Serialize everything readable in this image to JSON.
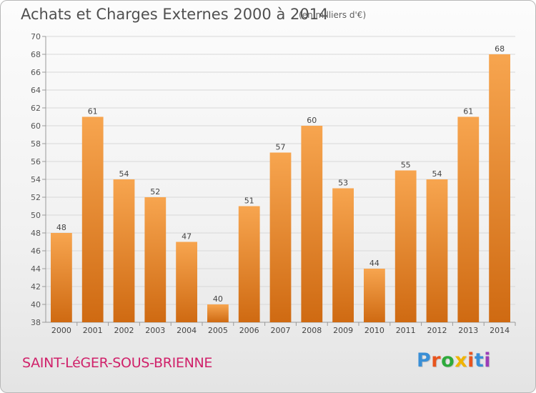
{
  "header": {
    "title": "Achats et Charges Externes 2000 à 2014",
    "subtitle": "(en milliers d'€)"
  },
  "footer": {
    "commune": "SAINT-LéGER-SOUS-BRIENNE",
    "logo": "Proxiti"
  },
  "colors": {
    "bar_top": "#f7a54f",
    "bar_bottom": "#cf6a12",
    "grid": "#d8d8d8",
    "commune": "#d0216a",
    "logo_letters": [
      "#3a8fd6",
      "#e8551e",
      "#2eaa3c",
      "#f0b400",
      "#e8551e",
      "#3a8fd6",
      "#9b3db8"
    ]
  },
  "chart_data": {
    "type": "bar",
    "title": "Achats et Charges Externes 2000 à 2014",
    "subtitle": "(en milliers d'€)",
    "xlabel": "",
    "ylabel": "",
    "categories": [
      "2000",
      "2001",
      "2002",
      "2003",
      "2004",
      "2005",
      "2006",
      "2007",
      "2008",
      "2009",
      "2010",
      "2011",
      "2012",
      "2013",
      "2014"
    ],
    "values": [
      48,
      61,
      54,
      52,
      47,
      40,
      51,
      57,
      60,
      53,
      44,
      55,
      54,
      61,
      68
    ],
    "ylim": [
      38,
      70
    ],
    "yticks": [
      38,
      40,
      42,
      44,
      46,
      48,
      50,
      52,
      54,
      56,
      58,
      60,
      62,
      64,
      66,
      68,
      70
    ],
    "grid": true,
    "data_labels": true
  }
}
